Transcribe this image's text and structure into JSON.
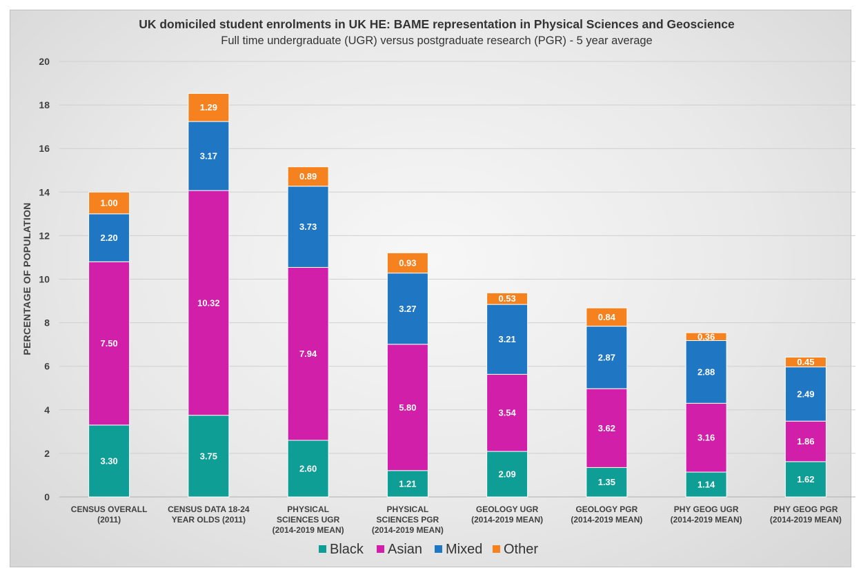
{
  "chart_data": {
    "type": "bar",
    "stacked": true,
    "title": "UK domiciled student enrolments in UK HE: BAME representation in Physical Sciences and Geoscience",
    "subtitle": "Full time undergraduate (UGR) versus postgraduate research (PGR) - 5 year average",
    "ylabel": "PERCENTAGE OF POPULATION",
    "xlabel": "",
    "ylim": [
      0,
      20
    ],
    "yticks": [
      0,
      2,
      4,
      6,
      8,
      10,
      12,
      14,
      16,
      18,
      20
    ],
    "grid": true,
    "legend_position": "bottom",
    "categories": [
      [
        "CENSUS OVERALL",
        "(2011)"
      ],
      [
        "CENSUS DATA 18-24",
        "YEAR OLDS (2011)"
      ],
      [
        "PHYSICAL",
        "SCIENCES UGR",
        "(2014-2019 MEAN)"
      ],
      [
        "PHYSICAL",
        "SCIENCES PGR",
        "(2014-2019 MEAN)"
      ],
      [
        "GEOLOGY UGR",
        "(2014-2019 MEAN)"
      ],
      [
        "GEOLOGY PGR",
        "(2014-2019 MEAN)"
      ],
      [
        "PHY GEOG UGR",
        "(2014-2019 MEAN)"
      ],
      [
        "PHY GEOG PGR",
        "(2014-2019 MEAN)"
      ]
    ],
    "series": [
      {
        "name": "Black",
        "color": "#0f9e96",
        "values": [
          3.3,
          3.75,
          2.6,
          1.21,
          2.09,
          1.35,
          1.14,
          1.62
        ],
        "labels": [
          "3.30",
          "3.75",
          "2.60",
          "1.21",
          "2.09",
          "1.35",
          "1.14",
          "1.62"
        ]
      },
      {
        "name": "Asian",
        "color": "#d11fa9",
        "values": [
          7.5,
          10.32,
          7.94,
          5.8,
          3.54,
          3.62,
          3.16,
          1.86
        ],
        "labels": [
          "7.50",
          "10.32",
          "7.94",
          "5.80",
          "3.54",
          "3.62",
          "3.16",
          "1.86"
        ]
      },
      {
        "name": "Mixed",
        "color": "#1f77c4",
        "values": [
          2.2,
          3.17,
          3.73,
          3.27,
          3.21,
          2.87,
          2.88,
          2.49
        ],
        "labels": [
          "2.20",
          "3.17",
          "3.73",
          "3.27",
          "3.21",
          "2.87",
          "2.88",
          "2.49"
        ]
      },
      {
        "name": "Other",
        "color": "#f5821f",
        "values": [
          1.0,
          1.29,
          0.89,
          0.93,
          0.53,
          0.84,
          0.36,
          0.45
        ],
        "labels": [
          "1.00",
          "1.29",
          "0.89",
          "0.93",
          "0.53",
          "0.84",
          "0.36",
          "0.45"
        ]
      }
    ]
  }
}
